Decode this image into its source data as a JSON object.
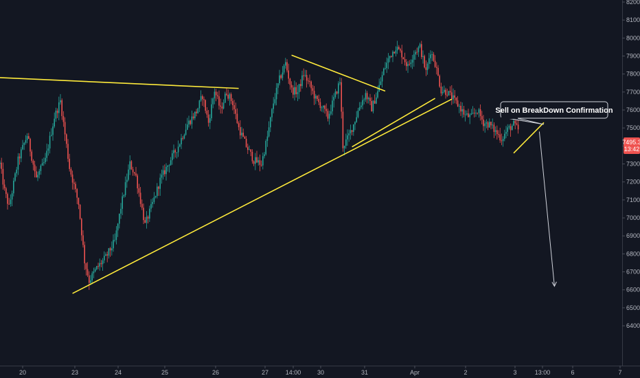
{
  "chart_data": {
    "type": "candlestick",
    "title": "",
    "xlabel": "",
    "ylabel": "",
    "ylim": [
      6380,
      8220
    ],
    "y_ticks": [
      6400,
      6500,
      6600,
      6700,
      6800,
      6900,
      7000,
      7100,
      7200,
      7300,
      7400,
      7500,
      7600,
      7700,
      7800,
      7900,
      8000,
      8100,
      8200
    ],
    "x_tick_labels": [
      "20",
      "23",
      "24",
      "25",
      "26",
      "27",
      "14:00",
      "30",
      "31",
      "Apr",
      "2",
      "3",
      "13:00",
      "6",
      "7"
    ],
    "grid": false,
    "colors": {
      "up": "#26a69a",
      "down": "#ef5350",
      "trendline": "#ffeb3b",
      "arrow": "#d1d4dc",
      "background": "#131722"
    },
    "price_key_points": [
      [
        0,
        7300
      ],
      [
        3,
        7150
      ],
      [
        6,
        7060
      ],
      [
        12,
        7320
      ],
      [
        18,
        7460
      ],
      [
        24,
        7220
      ],
      [
        30,
        7320
      ],
      [
        36,
        7560
      ],
      [
        40,
        7650
      ],
      [
        46,
        7280
      ],
      [
        52,
        7080
      ],
      [
        56,
        6760
      ],
      [
        59,
        6650
      ],
      [
        64,
        6720
      ],
      [
        70,
        6780
      ],
      [
        76,
        6870
      ],
      [
        80,
        7060
      ],
      [
        86,
        7300
      ],
      [
        90,
        7230
      ],
      [
        96,
        6960
      ],
      [
        101,
        7080
      ],
      [
        106,
        7210
      ],
      [
        112,
        7310
      ],
      [
        118,
        7400
      ],
      [
        124,
        7520
      ],
      [
        130,
        7590
      ],
      [
        134,
        7680
      ],
      [
        138,
        7530
      ],
      [
        142,
        7710
      ],
      [
        146,
        7600
      ],
      [
        150,
        7700
      ],
      [
        154,
        7640
      ],
      [
        158,
        7500
      ],
      [
        163,
        7400
      ],
      [
        168,
        7320
      ],
      [
        173,
        7300
      ],
      [
        177,
        7450
      ],
      [
        181,
        7640
      ],
      [
        185,
        7770
      ],
      [
        189,
        7860
      ],
      [
        193,
        7710
      ],
      [
        197,
        7700
      ],
      [
        201,
        7800
      ],
      [
        205,
        7740
      ],
      [
        209,
        7660
      ],
      [
        213,
        7620
      ],
      [
        217,
        7560
      ],
      [
        221,
        7660
      ],
      [
        225,
        7760
      ],
      [
        227,
        7400
      ],
      [
        230,
        7440
      ],
      [
        234,
        7520
      ],
      [
        238,
        7620
      ],
      [
        242,
        7690
      ],
      [
        246,
        7610
      ],
      [
        250,
        7700
      ],
      [
        254,
        7820
      ],
      [
        258,
        7900
      ],
      [
        262,
        7950
      ],
      [
        266,
        7910
      ],
      [
        270,
        7840
      ],
      [
        274,
        7920
      ],
      [
        278,
        7950
      ],
      [
        282,
        7810
      ],
      [
        285,
        7930
      ],
      [
        288,
        7860
      ],
      [
        292,
        7710
      ],
      [
        296,
        7700
      ],
      [
        300,
        7660
      ],
      [
        304,
        7620
      ],
      [
        308,
        7570
      ],
      [
        312,
        7560
      ],
      [
        316,
        7600
      ],
      [
        320,
        7530
      ],
      [
        324,
        7520
      ],
      [
        328,
        7480
      ],
      [
        332,
        7440
      ],
      [
        336,
        7490
      ],
      [
        340,
        7520
      ],
      [
        343,
        7490
      ]
    ],
    "trendlines": [
      {
        "name": "descending-resistance",
        "from": [
          0,
          7780
        ],
        "to": [
          158,
          7720
        ]
      },
      {
        "name": "lower-trend-support",
        "from": [
          48,
          6580
        ],
        "to": [
          299,
          7660
        ]
      },
      {
        "name": "flag-upper-trendline",
        "from": [
          193,
          7905
        ],
        "to": [
          255,
          7705
        ]
      },
      {
        "name": "flag-lower-trendline",
        "from": [
          233,
          7395
        ],
        "to": [
          288,
          7665
        ]
      },
      {
        "name": "micro-trendline",
        "from": [
          340,
          7360
        ],
        "to": [
          360,
          7530
        ]
      }
    ],
    "projection": {
      "from": [
        357,
        7480
      ],
      "to": [
        367,
        6620
      ]
    },
    "callout": {
      "text": "Sell on BreakDown Confirmation",
      "anchor": [
        360,
        7520
      ]
    },
    "last_price_label": "7495.3",
    "countdown_label": "13:42",
    "last_price": 7495.3
  }
}
